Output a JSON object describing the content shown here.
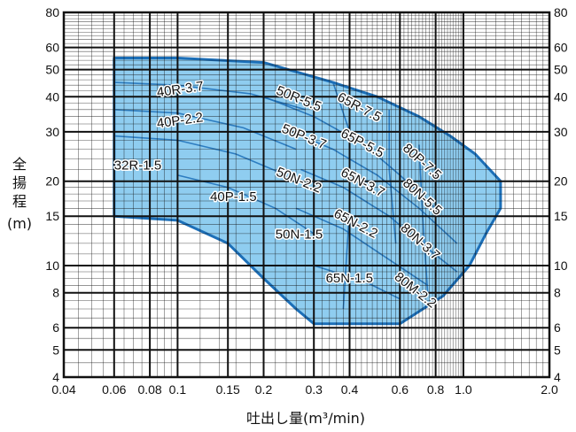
{
  "chart_data": {
    "type": "area",
    "title": "",
    "xlabel": "吐出し量(m³/min)",
    "ylabel_lines": [
      "全",
      "揚",
      "程",
      "(m)"
    ],
    "x_scale": "log",
    "y_scale": "log",
    "xlim": [
      0.04,
      2.0
    ],
    "ylim": [
      4,
      80
    ],
    "x_ticks": [
      0.04,
      0.06,
      0.08,
      0.1,
      0.15,
      0.2,
      0.3,
      0.4,
      0.6,
      0.8,
      1.0,
      2.0
    ],
    "x_tick_labels": [
      "0.04",
      "0.06",
      "0.08",
      "0.1",
      "0.15",
      "0.2",
      "0.3",
      "0.4",
      "0.6",
      "0.8",
      "1.0",
      "2.0"
    ],
    "y_ticks": [
      4,
      5,
      6,
      8,
      10,
      15,
      20,
      30,
      40,
      50,
      60,
      80
    ],
    "y_tick_labels": [
      "4",
      "5",
      "6",
      "8",
      "10",
      "15",
      "20",
      "30",
      "40",
      "50",
      "60",
      "80"
    ],
    "grid": true,
    "colors": {
      "fill": "#8fcdf0",
      "border": "#1c6fb8",
      "grid": "#111111"
    },
    "envelope": [
      [
        0.06,
        55
      ],
      [
        0.1,
        55
      ],
      [
        0.2,
        53
      ],
      [
        0.35,
        45
      ],
      [
        0.5,
        40
      ],
      [
        0.7,
        34
      ],
      [
        0.9,
        29
      ],
      [
        1.1,
        25
      ],
      [
        1.35,
        20
      ],
      [
        1.35,
        16
      ],
      [
        1.2,
        13
      ],
      [
        1.05,
        10
      ],
      [
        0.85,
        7.8
      ],
      [
        0.6,
        6.2
      ],
      [
        0.3,
        6.2
      ],
      [
        0.26,
        7
      ],
      [
        0.2,
        9
      ],
      [
        0.15,
        12
      ],
      [
        0.1,
        14.5
      ],
      [
        0.06,
        15
      ]
    ],
    "regions": [
      {
        "name": "40R-3.7",
        "x": 0.085,
        "y": 40,
        "angle": -8
      },
      {
        "name": "40P-2.2",
        "x": 0.085,
        "y": 31,
        "angle": -8
      },
      {
        "name": "32R-1.5",
        "x": 0.06,
        "y": 22,
        "angle": 0
      },
      {
        "name": "40P-1.5",
        "x": 0.13,
        "y": 17,
        "angle": 0
      },
      {
        "name": "50R-5.5",
        "x": 0.22,
        "y": 41,
        "angle": 22
      },
      {
        "name": "50P-3.7",
        "x": 0.23,
        "y": 30,
        "angle": 22
      },
      {
        "name": "50N-2.2",
        "x": 0.22,
        "y": 21,
        "angle": 22
      },
      {
        "name": "50N-1.5",
        "x": 0.22,
        "y": 12.5,
        "angle": 0
      },
      {
        "name": "65R-7.5",
        "x": 0.36,
        "y": 39,
        "angle": 28
      },
      {
        "name": "65P-5.5",
        "x": 0.37,
        "y": 29,
        "angle": 28
      },
      {
        "name": "65N-3.7",
        "x": 0.37,
        "y": 21,
        "angle": 28
      },
      {
        "name": "65N-2.2",
        "x": 0.35,
        "y": 15,
        "angle": 28
      },
      {
        "name": "65N-1.5",
        "x": 0.33,
        "y": 8.7,
        "angle": 0
      },
      {
        "name": "80P-7.5",
        "x": 0.61,
        "y": 26,
        "angle": 42
      },
      {
        "name": "80N-5.5",
        "x": 0.61,
        "y": 19.5,
        "angle": 42
      },
      {
        "name": "80N-3.7",
        "x": 0.6,
        "y": 13.5,
        "angle": 42
      },
      {
        "name": "80M-2.2",
        "x": 0.57,
        "y": 9,
        "angle": 38
      }
    ]
  }
}
